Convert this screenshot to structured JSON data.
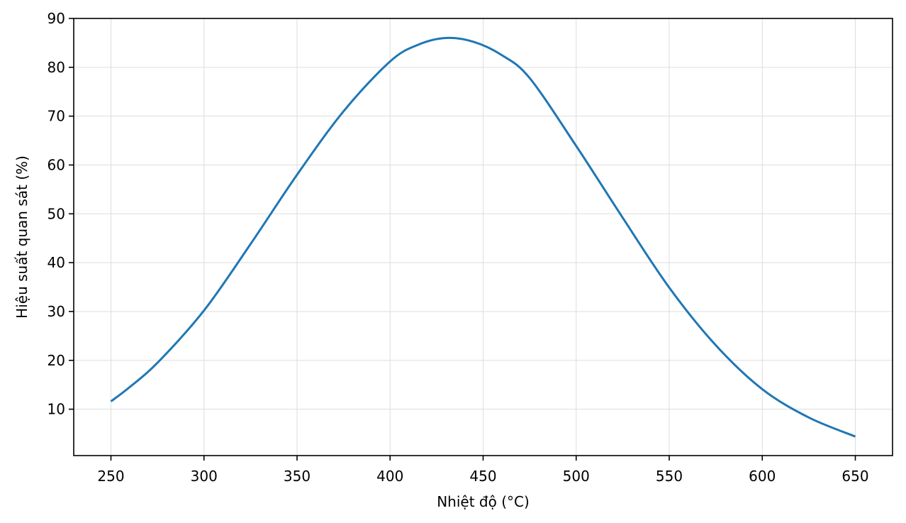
{
  "chart_data": {
    "type": "line",
    "title": "",
    "xlabel": "Nhiệt độ (°C)",
    "ylabel": "Hiệu suất quan sát (%)",
    "xlim": [
      230,
      670
    ],
    "ylim": [
      0.5,
      90
    ],
    "xticks": [
      250,
      300,
      350,
      400,
      450,
      500,
      550,
      600,
      650
    ],
    "yticks": [
      10,
      20,
      30,
      40,
      50,
      60,
      70,
      80,
      90
    ],
    "grid": true,
    "legend": "none",
    "series": [
      {
        "color": "#1f77b4",
        "x": [
          250,
          260,
          275,
          300,
          325,
          350,
          375,
          400,
          415,
          430,
          445,
          460,
          475,
          500,
          525,
          550,
          575,
          600,
          625,
          650
        ],
        "y": [
          11.6,
          14.5,
          19.5,
          30.2,
          43.8,
          58.0,
          71.0,
          81.2,
          84.6,
          86.0,
          85.2,
          82.5,
          77.8,
          63.9,
          49.2,
          34.9,
          23.1,
          14.1,
          8.3,
          4.4
        ]
      }
    ]
  }
}
